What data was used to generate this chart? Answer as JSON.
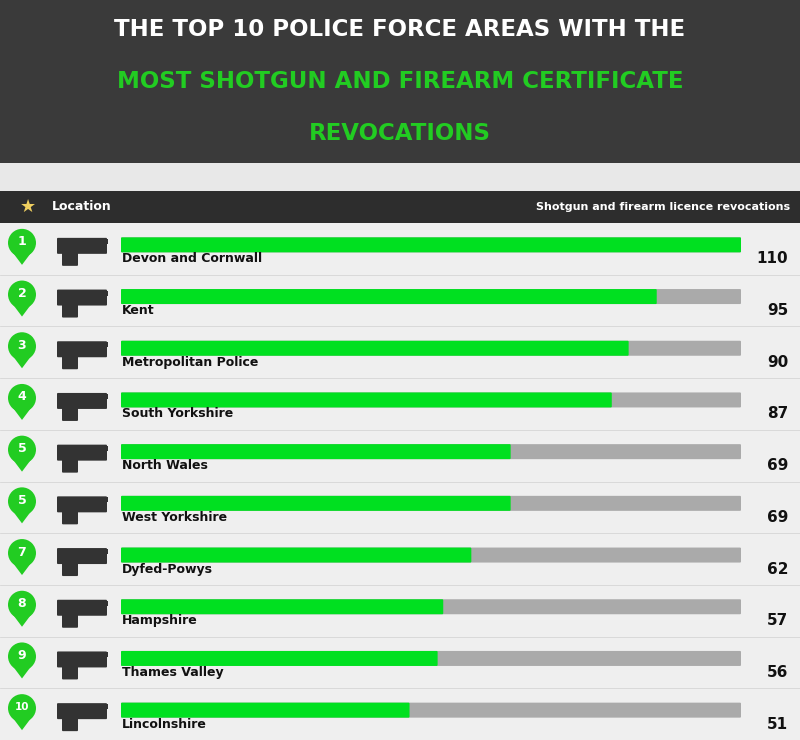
{
  "title_line1": "THE TOP 10 POLICE FORCE AREAS WITH THE",
  "title_line2": "MOST SHOTGUN AND FIREARM CERTIFICATE",
  "title_line3": "REVOCATIONS",
  "header_col1": "Location",
  "header_col2": "Shotgun and firearm licence revocations",
  "categories": [
    "Devon and Cornwall",
    "Kent",
    "Metropolitan Police",
    "South Yorkshire",
    "North Wales",
    "West Yorkshire",
    "Dyfed-Powys",
    "Hampshire",
    "Thames Valley",
    "Lincolnshire"
  ],
  "ranks": [
    "1",
    "2",
    "3",
    "4",
    "5",
    "5",
    "7",
    "8",
    "9",
    "10"
  ],
  "values": [
    110,
    95,
    90,
    87,
    69,
    69,
    62,
    57,
    56,
    51
  ],
  "max_value": 110,
  "bar_color": "#00e020",
  "bg_bar_color": "#aaaaaa",
  "title_bg": "#3a3a3a",
  "header_bg": "#2d2d2d",
  "body_bg": "#efefef",
  "rank_bg": "#22cc22",
  "gap_bg": "#e8e8e8"
}
